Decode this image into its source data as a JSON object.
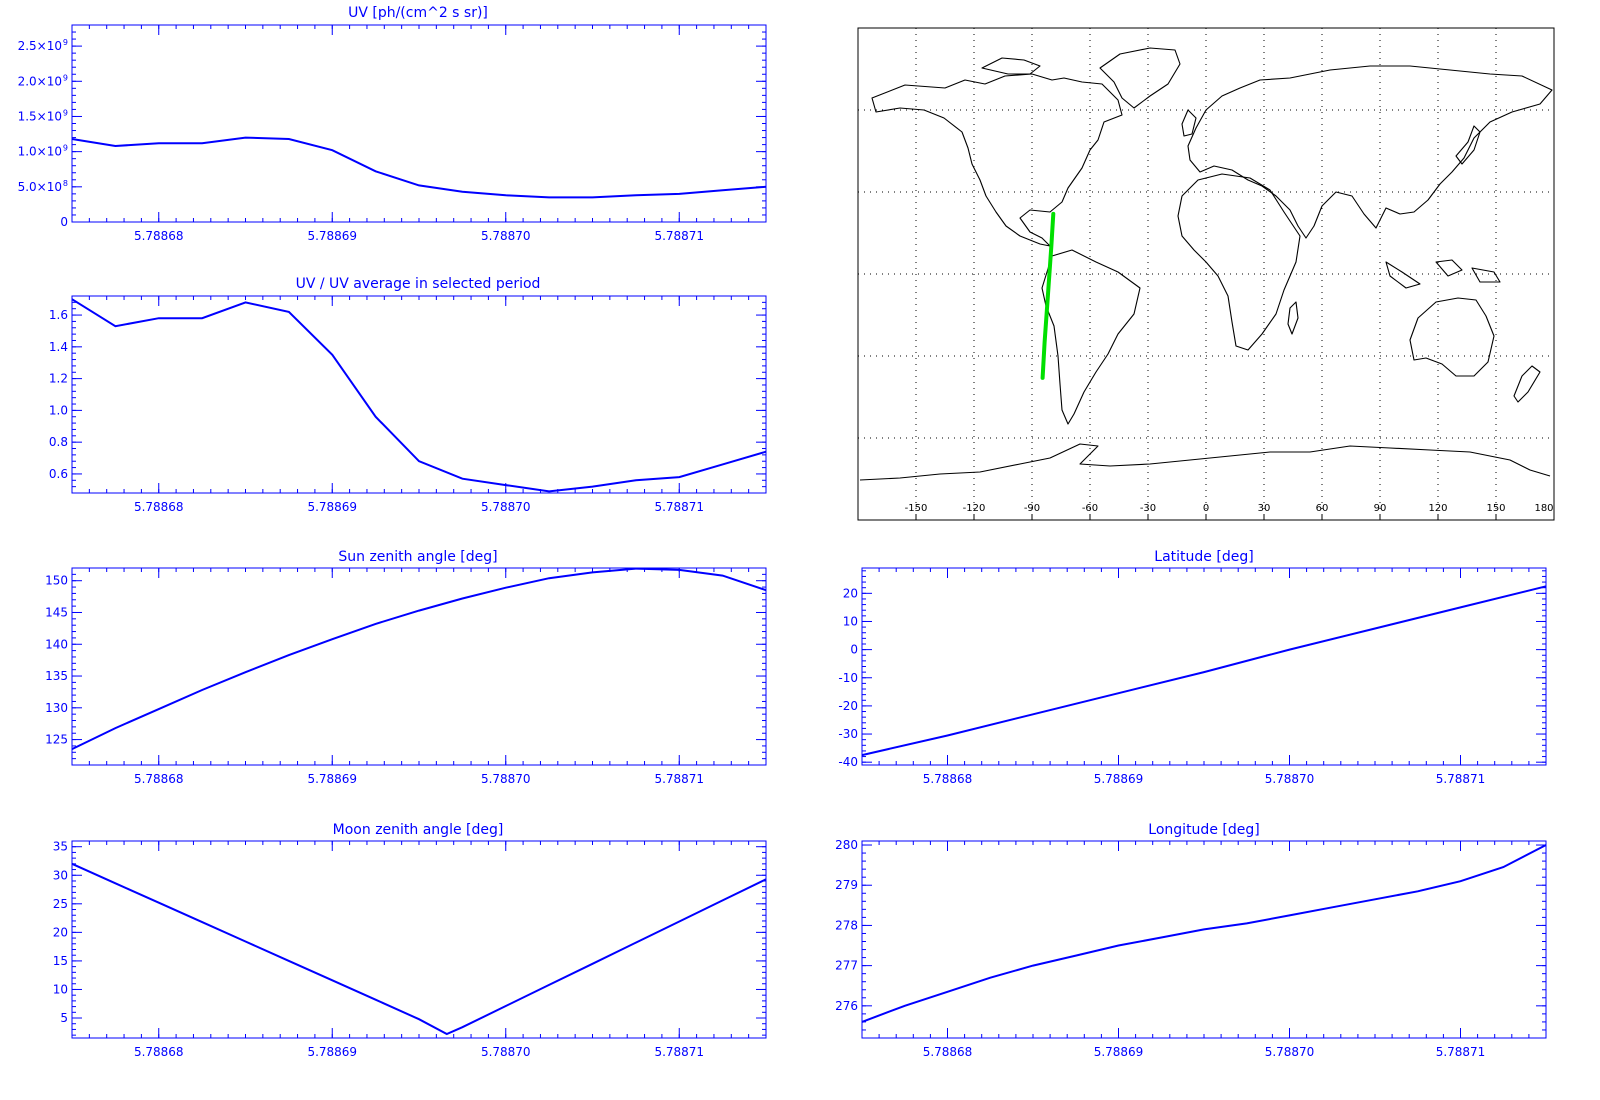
{
  "colors": {
    "axis": "#0000ff",
    "series": "#0000ff",
    "track": "#00e000",
    "coast": "#000000",
    "grid": "#000000",
    "map_frame": "#000000"
  },
  "chart_data": [
    {
      "id": "uv",
      "type": "line",
      "title": "UV [ph/(cm^2 s sr)]",
      "xlabel": "",
      "ylabel": "",
      "xlim": [
        5.788675,
        5.788715
      ],
      "ylim": [
        0,
        2800000000.0
      ],
      "xticks": [
        5.78868,
        5.78869,
        5.7887,
        5.78871
      ],
      "xtick_labels": [
        "5.78868",
        "5.78869",
        "5.78870",
        "5.78871"
      ],
      "yticks": [
        0,
        500000000.0,
        1000000000.0,
        1500000000.0,
        2000000000.0,
        2500000000.0
      ],
      "ytick_labels": [
        {
          "value": 0,
          "mant": "0",
          "exp": ""
        },
        {
          "value": 500000000,
          "mant": "5.0×10",
          "exp": "8"
        },
        {
          "value": 1000000000,
          "mant": "1.0×10",
          "exp": "9"
        },
        {
          "value": 1500000000,
          "mant": "1.5×10",
          "exp": "9"
        },
        {
          "value": 2000000000,
          "mant": "2.0×10",
          "exp": "9"
        },
        {
          "value": 2500000000,
          "mant": "2.5×10",
          "exp": "9"
        }
      ],
      "x": [
        5.788675,
        5.7886775,
        5.78868,
        5.7886825,
        5.788685,
        5.7886875,
        5.78869,
        5.7886925,
        5.788695,
        5.7886975,
        5.7887,
        5.7887025,
        5.788705,
        5.7887075,
        5.78871,
        5.7887125,
        5.788715
      ],
      "y": [
        1180000000.0,
        1080000000.0,
        1120000000.0,
        1120000000.0,
        1200000000.0,
        1180000000.0,
        1020000000.0,
        720000000.0,
        520000000.0,
        430000000.0,
        380000000.0,
        350000000.0,
        350000000.0,
        380000000.0,
        400000000.0,
        450000000.0,
        500000000.0
      ]
    },
    {
      "id": "ratio",
      "type": "line",
      "title": "UV / UV average in selected period",
      "xlabel": "",
      "ylabel": "",
      "xlim": [
        5.788675,
        5.788715
      ],
      "ylim": [
        0.48,
        1.72
      ],
      "xticks": [
        5.78868,
        5.78869,
        5.7887,
        5.78871
      ],
      "xtick_labels": [
        "5.78868",
        "5.78869",
        "5.78870",
        "5.78871"
      ],
      "yticks": [
        0.6,
        0.8,
        1.0,
        1.2,
        1.4,
        1.6
      ],
      "ytick_labels": [
        "0.6",
        "0.8",
        "1.0",
        "1.2",
        "1.4",
        "1.6"
      ],
      "x": [
        5.788675,
        5.7886775,
        5.78868,
        5.7886825,
        5.788685,
        5.7886875,
        5.78869,
        5.7886925,
        5.788695,
        5.7886975,
        5.7887,
        5.7887025,
        5.788705,
        5.7887075,
        5.78871,
        5.7887125,
        5.788715
      ],
      "y": [
        1.7,
        1.53,
        1.58,
        1.58,
        1.68,
        1.62,
        1.35,
        0.96,
        0.68,
        0.57,
        0.53,
        0.49,
        0.52,
        0.56,
        0.58,
        0.66,
        0.74
      ]
    },
    {
      "id": "sza",
      "type": "line",
      "title": "Sun zenith angle [deg]",
      "xlabel": "",
      "ylabel": "",
      "xlim": [
        5.788675,
        5.788715
      ],
      "ylim": [
        121,
        152
      ],
      "xticks": [
        5.78868,
        5.78869,
        5.7887,
        5.78871
      ],
      "xtick_labels": [
        "5.78868",
        "5.78869",
        "5.78870",
        "5.78871"
      ],
      "yticks": [
        125,
        130,
        135,
        140,
        145,
        150
      ],
      "ytick_labels": [
        "125",
        "130",
        "135",
        "140",
        "145",
        "150"
      ],
      "x": [
        5.788675,
        5.7886775,
        5.78868,
        5.7886825,
        5.788685,
        5.7886875,
        5.78869,
        5.7886925,
        5.788695,
        5.7886975,
        5.7887,
        5.7887025,
        5.788705,
        5.7887075,
        5.78871,
        5.7887125,
        5.788715
      ],
      "y": [
        123.5,
        126.8,
        129.8,
        132.8,
        135.6,
        138.3,
        140.8,
        143.2,
        145.3,
        147.2,
        148.9,
        150.4,
        151.3,
        151.9,
        151.7,
        150.8,
        148.5
      ]
    },
    {
      "id": "lat",
      "type": "line",
      "title": "Latitude [deg]",
      "xlabel": "",
      "ylabel": "",
      "xlim": [
        5.788675,
        5.788715
      ],
      "ylim": [
        -41,
        29
      ],
      "xticks": [
        5.78868,
        5.78869,
        5.7887,
        5.78871
      ],
      "xtick_labels": [
        "5.78868",
        "5.78869",
        "5.78870",
        "5.78871"
      ],
      "yticks": [
        -40,
        -30,
        -20,
        -10,
        0,
        10,
        20
      ],
      "ytick_labels": [
        "-40",
        "-30",
        "-20",
        "-10",
        "0",
        "10",
        "20"
      ],
      "x": [
        5.788675,
        5.78868,
        5.788685,
        5.78869,
        5.788695,
        5.7887,
        5.788705,
        5.78871,
        5.788715
      ],
      "y": [
        -37.5,
        -30.5,
        -23,
        -15.5,
        -8,
        0,
        7.5,
        15,
        22.5
      ]
    },
    {
      "id": "mza",
      "type": "line",
      "title": "Moon zenith angle [deg]",
      "xlabel": "",
      "ylabel": "",
      "xlim": [
        5.788675,
        5.788715
      ],
      "ylim": [
        1.5,
        36
      ],
      "xticks": [
        5.78868,
        5.78869,
        5.7887,
        5.78871
      ],
      "xtick_labels": [
        "5.78868",
        "5.78869",
        "5.78870",
        "5.78871"
      ],
      "yticks": [
        5,
        10,
        15,
        20,
        25,
        30,
        35
      ],
      "ytick_labels": [
        "5",
        "10",
        "15",
        "20",
        "25",
        "30",
        "35"
      ],
      "x": [
        5.788675,
        5.7886775,
        5.78868,
        5.7886825,
        5.788685,
        5.7886875,
        5.78869,
        5.7886925,
        5.788695,
        5.7886966,
        5.7886975,
        5.7887,
        5.7887025,
        5.788705,
        5.7887075,
        5.78871,
        5.7887125,
        5.788715
      ],
      "y": [
        32,
        28.6,
        25.2,
        21.8,
        18.4,
        15,
        11.6,
        8.2,
        4.8,
        2.2,
        3.4,
        7.1,
        10.8,
        14.5,
        18.2,
        21.9,
        25.6,
        29.3
      ]
    },
    {
      "id": "lon",
      "type": "line",
      "title": "Longitude [deg]",
      "xlabel": "",
      "ylabel": "",
      "xlim": [
        5.788675,
        5.788715
      ],
      "ylim": [
        275.2,
        280.1
      ],
      "xticks": [
        5.78868,
        5.78869,
        5.7887,
        5.78871
      ],
      "xtick_labels": [
        "5.78868",
        "5.78869",
        "5.78870",
        "5.78871"
      ],
      "yticks": [
        276,
        277,
        278,
        279,
        280
      ],
      "ytick_labels": [
        "276",
        "277",
        "278",
        "279",
        "280"
      ],
      "x": [
        5.788675,
        5.7886775,
        5.78868,
        5.7886825,
        5.788685,
        5.7886875,
        5.78869,
        5.7886925,
        5.788695,
        5.7886975,
        5.7887,
        5.7887025,
        5.788705,
        5.7887075,
        5.78871,
        5.7887125,
        5.788715
      ],
      "y": [
        275.6,
        276.0,
        276.35,
        276.7,
        277.0,
        277.25,
        277.5,
        277.7,
        277.9,
        278.05,
        278.25,
        278.45,
        278.65,
        278.85,
        279.1,
        279.45,
        280.0
      ]
    }
  ],
  "map": {
    "xticks": [
      -150,
      -120,
      -90,
      -60,
      -30,
      0,
      30,
      60,
      90,
      120,
      150,
      180
    ],
    "xtick_labels": [
      "-150",
      "-120",
      "-90",
      "-60",
      "-30",
      "0",
      "30",
      "60",
      "90",
      "120",
      "150",
      "180"
    ],
    "track": {
      "lon": [
        -79,
        -80,
        -82,
        -83.5,
        -84.5
      ],
      "lat": [
        22,
        10,
        -10,
        -25,
        -38
      ]
    }
  }
}
